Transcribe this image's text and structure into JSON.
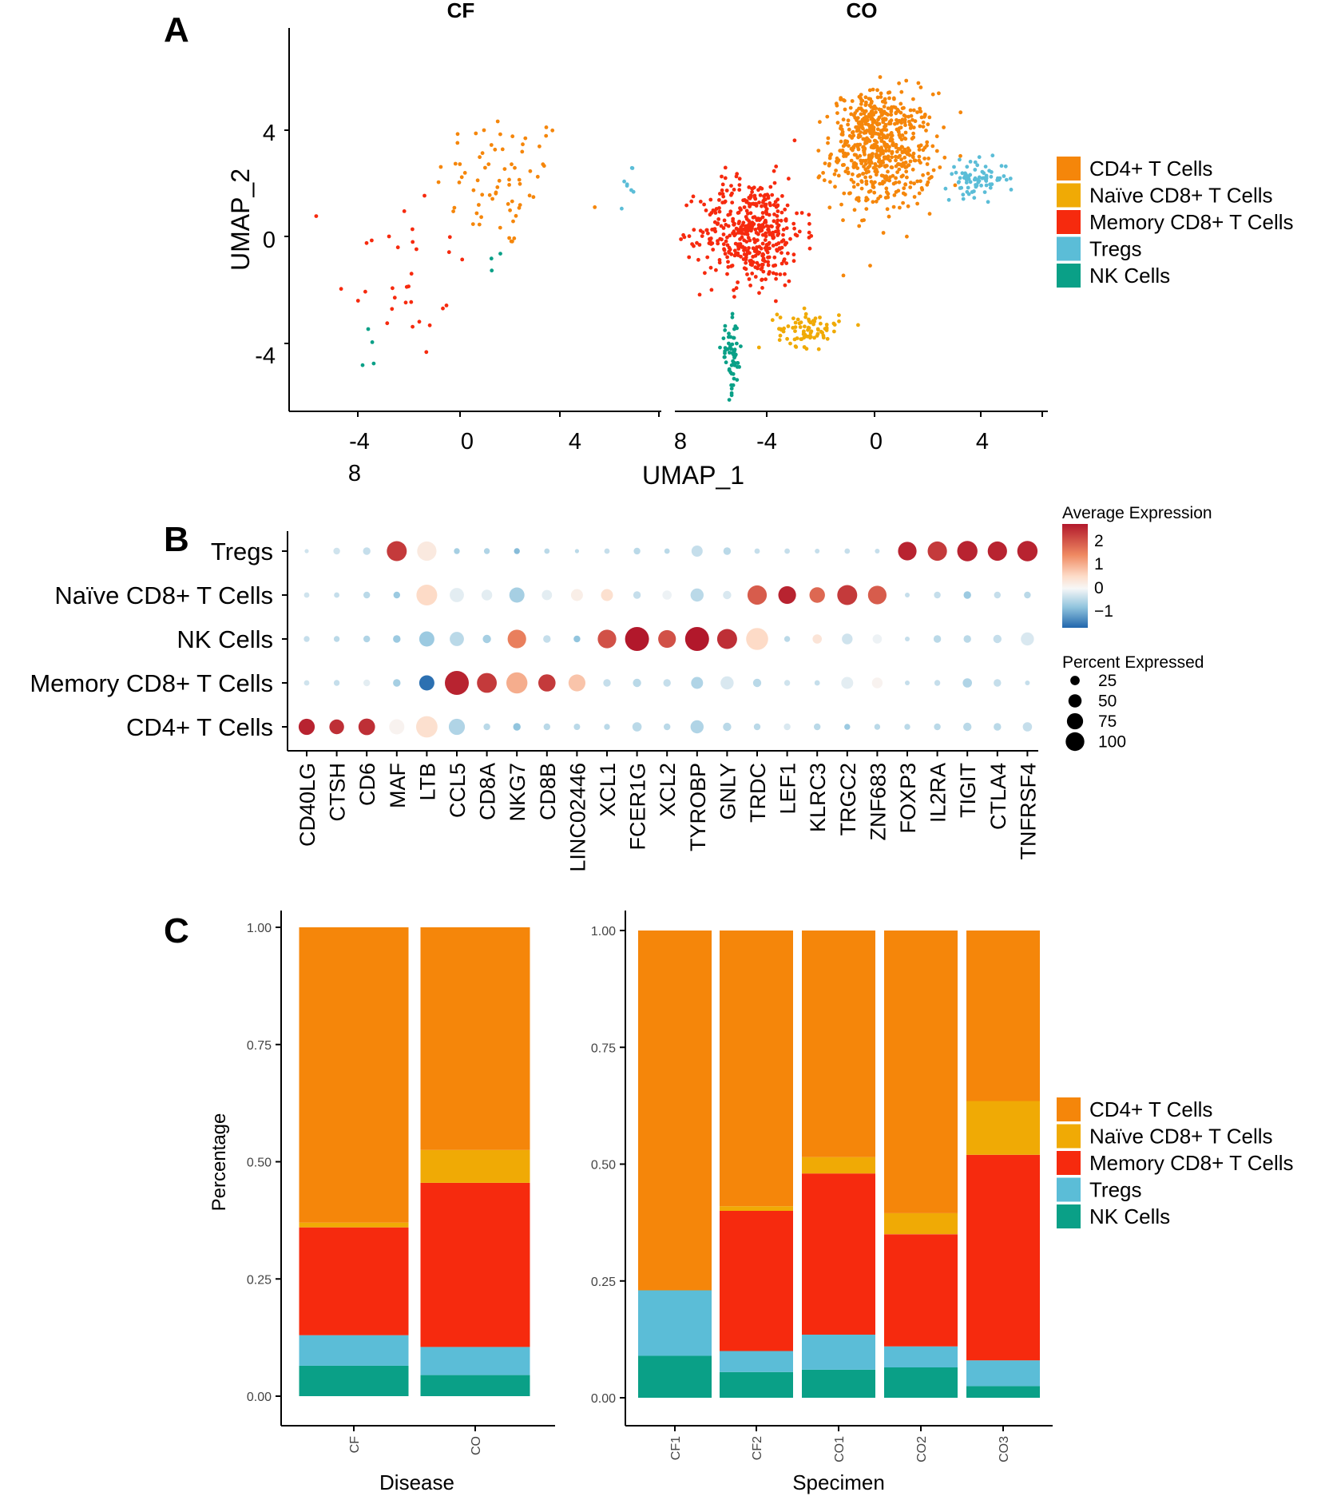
{
  "colors": {
    "CD4+ T Cells": "#F5860A",
    "Naïve CD8+ T Cells": "#F0AA05",
    "Memory CD8+ T Cells": "#F62A0E",
    "Tregs": "#5BBDD7",
    "NK Cells": "#0AA087"
  },
  "panels": {
    "A": "A",
    "B": "B",
    "C": "C"
  },
  "chart_data": [
    {
      "type": "scatter",
      "panel": "A",
      "facets": [
        "CF",
        "CO"
      ],
      "xlabel": "UMAP_1",
      "ylabel": "UMAP_2",
      "xticks_CF": [
        "-4",
        "0",
        "4",
        "8"
      ],
      "xticks_CO": [
        "8",
        "-4",
        "0",
        "4"
      ],
      "yticks": [
        "4",
        "0",
        "-4"
      ],
      "xlim": [
        -7,
        7.5
      ],
      "ylim": [
        -6.5,
        6.5
      ],
      "legend": [
        "CD4+ T Cells",
        "Naïve CD8+ T Cells",
        "Memory CD8+ T Cells",
        "Tregs",
        "NK Cells"
      ],
      "clusters_CF": [
        {
          "cell_type": "CD4+ T Cells",
          "cx": 1.3,
          "cy": 1.3,
          "sx": 1.3,
          "sy": 1.2,
          "n": 70
        },
        {
          "cell_type": "Memory CD8+ T Cells",
          "cx": -2.6,
          "cy": -1.7,
          "sx": 1.3,
          "sy": 1.6,
          "n": 32
        },
        {
          "cell_type": "Tregs",
          "cx": 6.2,
          "cy": 1.2,
          "sx": 0.2,
          "sy": 0.6,
          "n": 8
        },
        {
          "cell_type": "NK Cells",
          "cx": -3.9,
          "cy": -4.6,
          "sx": 0.3,
          "sy": 0.6,
          "n": 4
        },
        {
          "cell_type": "NK Cells",
          "cx": 1.0,
          "cy": -1.2,
          "sx": 0.1,
          "sy": 0.3,
          "n": 3
        }
      ],
      "clusters_CO": [
        {
          "cell_type": "CD4+ T Cells",
          "cx": 1.1,
          "cy": 2.3,
          "sx": 1.0,
          "sy": 1.0,
          "n": 520
        },
        {
          "cell_type": "CD4+ T Cells",
          "cx": 0.5,
          "cy": 3.3,
          "sx": 0.5,
          "sy": 0.5,
          "n": 120
        },
        {
          "cell_type": "Memory CD8+ T Cells",
          "cx": -4.0,
          "cy": -0.4,
          "sx": 1.0,
          "sy": 0.9,
          "n": 450
        },
        {
          "cell_type": "Naïve CD8+ T Cells",
          "cx": -1.8,
          "cy": -3.7,
          "sx": 0.6,
          "sy": 0.3,
          "n": 80
        },
        {
          "cell_type": "Tregs",
          "cx": 4.7,
          "cy": 1.4,
          "sx": 0.6,
          "sy": 0.3,
          "n": 80
        },
        {
          "cell_type": "NK Cells",
          "cx": -4.8,
          "cy": -4.7,
          "sx": 0.2,
          "sy": 0.6,
          "n": 60
        }
      ]
    },
    {
      "type": "dotplot",
      "panel": "B",
      "rows": [
        "Tregs",
        "Naïve CD8+ T Cells",
        "NK Cells",
        "Memory CD8+ T Cells",
        "CD4+ T Cells"
      ],
      "genes": [
        "CD40LG",
        "CTSH",
        "CD6",
        "MAF",
        "LTB",
        "CCL5",
        "CD8A",
        "NKG7",
        "CD8B",
        "LINC02446",
        "XCL1",
        "FCER1G",
        "XCL2",
        "TYROBP",
        "GNLY",
        "TRDC",
        "LEF1",
        "KLRC3",
        "TRGC2",
        "ZNF683",
        "FOXP3",
        "IL2RA",
        "TIGIT",
        "CTLA4",
        "TNFRSF4"
      ],
      "legend_color_title": "Average Expression",
      "color_ticks": [
        "2",
        "1",
        "0",
        "−1"
      ],
      "legend_size_title": "Percent Expressed",
      "size_ticks": [
        "25",
        "50",
        "75",
        "100"
      ],
      "avg_expression": [
        [
          -0.4,
          -0.4,
          -0.5,
          2.0,
          0.3,
          -0.8,
          -0.7,
          -1.1,
          -0.6,
          -0.6,
          -0.5,
          -0.6,
          -0.6,
          -0.5,
          -0.6,
          -0.5,
          -0.5,
          -0.5,
          -0.5,
          -0.5,
          2.2,
          2.0,
          2.2,
          2.2,
          2.2
        ],
        [
          -0.4,
          -0.5,
          -0.6,
          -0.9,
          0.6,
          -0.2,
          -0.2,
          -0.8,
          -0.2,
          0.2,
          0.5,
          -0.5,
          -0.1,
          -0.6,
          -0.3,
          1.7,
          2.2,
          1.6,
          2.0,
          1.7,
          -0.5,
          -0.5,
          -0.9,
          -0.5,
          -0.6
        ],
        [
          -0.5,
          -0.6,
          -0.7,
          -0.9,
          -0.9,
          -0.6,
          -0.8,
          1.4,
          -0.5,
          -1.0,
          1.8,
          2.3,
          1.8,
          2.3,
          2.1,
          0.6,
          -0.6,
          0.4,
          -0.4,
          -0.1,
          -0.5,
          -0.6,
          -0.6,
          -0.5,
          -0.3
        ],
        [
          -0.4,
          -0.5,
          -0.2,
          -0.8,
          -1.9,
          2.2,
          2.0,
          1.0,
          2.0,
          0.8,
          -0.5,
          -0.6,
          -0.5,
          -0.7,
          -0.3,
          -0.6,
          -0.4,
          -0.5,
          -0.2,
          0.1,
          -0.5,
          -0.5,
          -0.7,
          -0.5,
          -0.5
        ],
        [
          2.2,
          2.1,
          2.1,
          0.1,
          0.5,
          -0.7,
          -0.6,
          -1.0,
          -0.6,
          -0.6,
          -0.6,
          -0.6,
          -0.6,
          -0.7,
          -0.6,
          -0.6,
          -0.3,
          -0.6,
          -0.9,
          -0.6,
          -0.6,
          -0.6,
          -0.6,
          -0.6,
          -0.5
        ]
      ],
      "pct_expressed": [
        [
          3,
          8,
          10,
          70,
          65,
          6,
          6,
          6,
          5,
          3,
          5,
          8,
          5,
          22,
          10,
          5,
          5,
          4,
          5,
          4,
          60,
          65,
          72,
          65,
          72
        ],
        [
          5,
          5,
          8,
          8,
          75,
          35,
          20,
          40,
          18,
          25,
          25,
          10,
          15,
          30,
          12,
          65,
          55,
          42,
          70,
          60,
          4,
          8,
          10,
          8,
          8
        ],
        [
          6,
          6,
          8,
          10,
          40,
          35,
          12,
          60,
          10,
          8,
          60,
          100,
          55,
          100,
          70,
          85,
          6,
          15,
          20,
          15,
          4,
          10,
          10,
          12,
          30
        ],
        [
          5,
          6,
          8,
          10,
          40,
          100,
          68,
          78,
          52,
          50,
          10,
          12,
          10,
          25,
          30,
          12,
          6,
          5,
          25,
          20,
          4,
          6,
          15,
          10,
          4
        ],
        [
          45,
          38,
          48,
          40,
          80,
          45,
          8,
          10,
          8,
          7,
          6,
          15,
          8,
          30,
          12,
          8,
          8,
          8,
          6,
          6,
          6,
          8,
          12,
          10,
          15
        ]
      ]
    },
    {
      "type": "bar",
      "stacked": true,
      "panel": "C",
      "facet": "Disease",
      "categories": [
        "CF",
        "CO"
      ],
      "xlabel": "Disease",
      "ylabel": "Percentage",
      "yticks": [
        "1.00",
        "0.75",
        "0.50",
        "0.25",
        "0.00"
      ],
      "ylim": [
        0,
        1
      ],
      "series": [
        {
          "name": "NK Cells",
          "values": [
            0.065,
            0.045
          ]
        },
        {
          "name": "Tregs",
          "values": [
            0.065,
            0.06
          ]
        },
        {
          "name": "Memory CD8+ T Cells",
          "values": [
            0.23,
            0.35
          ]
        },
        {
          "name": "Naïve CD8+ T Cells",
          "values": [
            0.01,
            0.07
          ]
        },
        {
          "name": "CD4+ T Cells",
          "values": [
            0.63,
            0.475
          ]
        }
      ]
    },
    {
      "type": "bar",
      "stacked": true,
      "panel": "C",
      "facet": "Specimen",
      "categories": [
        "CF1",
        "CF2",
        "CO1",
        "CO2",
        "CO3"
      ],
      "xlabel": "Specimen",
      "ylabel": "",
      "yticks": [
        "1.00",
        "0.75",
        "0.50",
        "0.25",
        "0.00"
      ],
      "ylim": [
        0,
        1
      ],
      "series": [
        {
          "name": "NK Cells",
          "values": [
            0.09,
            0.055,
            0.06,
            0.065,
            0.025
          ]
        },
        {
          "name": "Tregs",
          "values": [
            0.14,
            0.045,
            0.075,
            0.045,
            0.055
          ]
        },
        {
          "name": "Memory CD8+ T Cells",
          "values": [
            0.0,
            0.3,
            0.345,
            0.24,
            0.44
          ]
        },
        {
          "name": "Naïve CD8+ T Cells",
          "values": [
            0.0,
            0.01,
            0.035,
            0.045,
            0.115
          ]
        },
        {
          "name": "CD4+ T Cells",
          "values": [
            0.77,
            0.59,
            0.485,
            0.605,
            0.365
          ]
        }
      ],
      "legend": [
        "CD4+ T Cells",
        "Naïve CD8+ T Cells",
        "Memory CD8+ T Cells",
        "Tregs",
        "NK Cells"
      ]
    }
  ]
}
